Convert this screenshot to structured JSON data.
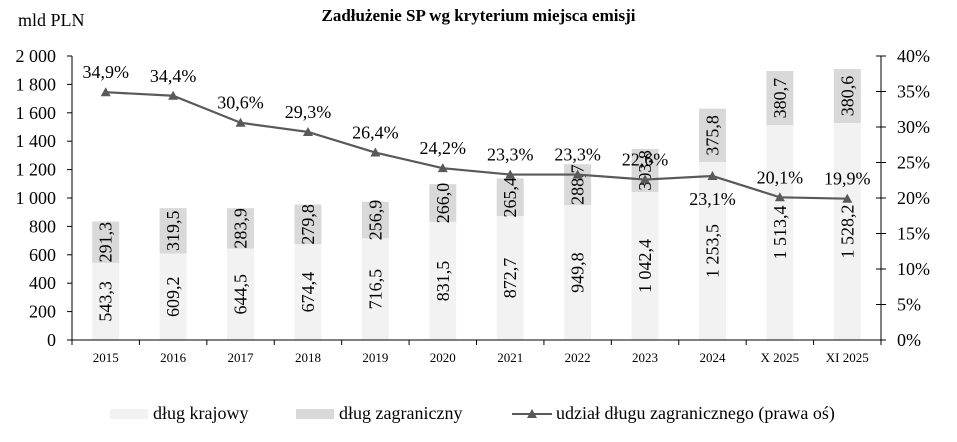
{
  "chart_data": {
    "type": "bar",
    "subtype": "stacked bar + line (secondary axis)",
    "title": "Zadłużenie SP wg kryterium miejsca emisji",
    "ylabel": "mld PLN",
    "ylabel_right": "",
    "xlabel": "",
    "ylim": [
      0,
      2000
    ],
    "ylim_right": [
      0,
      40
    ],
    "yticks": [
      "0",
      "200",
      "400",
      "600",
      "800",
      "1 000",
      "1 200",
      "1 400",
      "1 600",
      "1 800",
      "2 000"
    ],
    "yticks_right": [
      "0%",
      "5%",
      "10%",
      "15%",
      "20%",
      "25%",
      "30%",
      "35%",
      "40%"
    ],
    "categories": [
      "2015",
      "2016",
      "2017",
      "2018",
      "2019",
      "2020",
      "2021",
      "2022",
      "2023",
      "2024",
      "X 2025",
      "XI 2025"
    ],
    "series": [
      {
        "name": "dług krajowy",
        "type": "bar",
        "axis": "left",
        "color": "#f2f2f2",
        "values": [
          543.3,
          609.2,
          644.5,
          674.4,
          716.5,
          831.5,
          872.7,
          949.8,
          1042.4,
          1253.5,
          1513.4,
          1528.2
        ],
        "labels": [
          "543,3",
          "609,2",
          "644,5",
          "674,4",
          "716,5",
          "831,5",
          "872,7",
          "949,8",
          "1 042,4",
          "1 253,5",
          "1 513,4",
          "1 528,2"
        ]
      },
      {
        "name": "dług zagraniczny",
        "type": "bar",
        "axis": "left",
        "color": "#d9d9d9",
        "values": [
          291.3,
          319.5,
          283.9,
          279.8,
          256.9,
          266.0,
          265.4,
          288.7,
          303.8,
          375.8,
          380.7,
          380.6
        ],
        "labels": [
          "291,3",
          "319,5",
          "283,9",
          "279,8",
          "256,9",
          "266,0",
          "265,4",
          "288,7",
          "303,8",
          "375,8",
          "380,7",
          "380,6"
        ]
      },
      {
        "name": "udział długu zagranicznego (prawa oś)",
        "type": "line",
        "axis": "right",
        "color": "#595959",
        "marker": "triangle",
        "values": [
          34.9,
          34.4,
          30.6,
          29.3,
          26.4,
          24.2,
          23.3,
          23.3,
          22.6,
          23.1,
          20.1,
          19.9
        ],
        "labels": [
          "34,9%",
          "34,4%",
          "30,6%",
          "29,3%",
          "26,4%",
          "24,2%",
          "23,3%",
          "23,3%",
          "22,6%",
          "23,1%",
          "20,1%",
          "19,9%"
        ]
      }
    ],
    "grid": false,
    "legend_position": "bottom"
  },
  "legend": {
    "items": [
      {
        "label": "dług krajowy",
        "color": "#f2f2f2"
      },
      {
        "label": "dług zagraniczny",
        "color": "#d9d9d9"
      },
      {
        "label": "udział długu zagranicznego (prawa oś)",
        "color": "#595959"
      }
    ]
  }
}
